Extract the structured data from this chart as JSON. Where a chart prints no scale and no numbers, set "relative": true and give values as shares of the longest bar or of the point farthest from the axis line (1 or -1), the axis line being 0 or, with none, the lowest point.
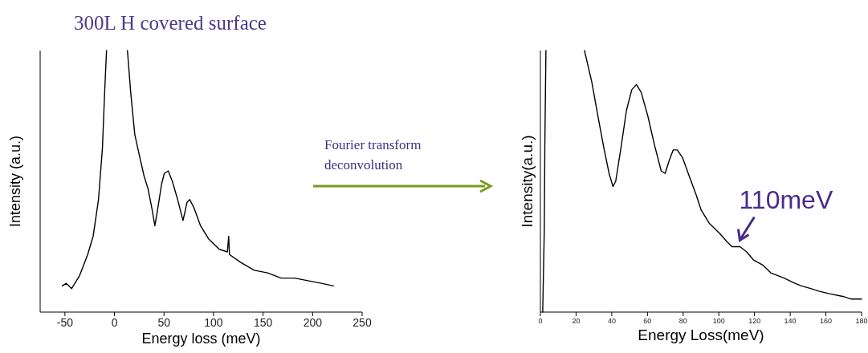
{
  "chart_data": [
    {
      "type": "line",
      "title": "300L H covered surface",
      "xlabel": "Energy loss (meV)",
      "ylabel": "Intensity (a.u.)",
      "relative": true,
      "xlim": [
        -75,
        250
      ],
      "xticks": [
        -50,
        0,
        50,
        100,
        150,
        200,
        250
      ],
      "annotations": [
        "Fourier transform deconvolution"
      ],
      "series": [
        {
          "color": "#000000",
          "x": [
            -52.7,
            -48.6,
            -43.2,
            -35.1,
            -27.0,
            -21.5,
            -16.1,
            -12.1,
            -9.9,
            -8.0,
            2.5,
            13.1,
            16.4,
            20.5,
            24.5,
            29.9,
            34.0,
            38.1,
            40.8,
            43.5,
            47.6,
            50.3,
            54.3,
            58.4,
            63.8,
            69.2,
            73.3,
            76.0,
            80.1,
            86.9,
            95.0,
            105.8,
            114.0,
            115.3,
            116.1,
            127.5,
            141.1,
            154.6,
            168.2,
            181.7,
            195.3,
            208.8,
            221.0
          ],
          "values": [
            0.1,
            0.11,
            0.09,
            0.14,
            0.22,
            0.29,
            0.43,
            0.63,
            0.84,
            1.0,
            null,
            1.0,
            0.84,
            0.68,
            0.61,
            0.52,
            0.47,
            0.39,
            0.33,
            0.39,
            0.49,
            0.53,
            0.54,
            0.5,
            0.43,
            0.35,
            0.42,
            0.43,
            0.4,
            0.33,
            0.28,
            0.24,
            0.23,
            0.29,
            0.22,
            0.19,
            0.16,
            0.15,
            0.13,
            0.13,
            0.12,
            0.11,
            0.1
          ]
        }
      ]
    },
    {
      "type": "line",
      "xlabel": "Energy Loss(meV)",
      "ylabel": "Intensity(a.u.)",
      "relative": true,
      "xlim": [
        0,
        180
      ],
      "xticks": [
        0,
        20,
        40,
        60,
        80,
        100,
        120,
        140,
        160,
        180
      ],
      "annotations": [
        {
          "text": "110meV",
          "x": 110,
          "y": 0.25
        }
      ],
      "series": [
        {
          "color": "#000000",
          "x": [
            1.3,
            2.2,
            2.5,
            3.1,
            14.0,
            24.7,
            28.8,
            32.5,
            35.5,
            38.5,
            40.7,
            42.2,
            45.2,
            48.2,
            51.2,
            53.8,
            56.5,
            60.2,
            63.9,
            67.7,
            69.9,
            72.2,
            74.4,
            76.7,
            79.7,
            83.4,
            87.2,
            90.1,
            94.6,
            100.6,
            104.4,
            107.4,
            111.9,
            115.6,
            119.3,
            124.6,
            129.1,
            136.6,
            142.6,
            146.3,
            151.5,
            156.0,
            162.0,
            169.5,
            174.0,
            180.0
          ],
          "values": [
            0,
            0.32,
            0.64,
            1.0,
            null,
            1.0,
            0.88,
            0.74,
            0.63,
            0.53,
            0.48,
            0.5,
            0.63,
            0.77,
            0.85,
            0.87,
            0.84,
            0.75,
            0.64,
            0.54,
            0.53,
            0.58,
            0.62,
            0.62,
            0.59,
            0.52,
            0.45,
            0.39,
            0.34,
            0.3,
            0.27,
            0.25,
            0.25,
            0.23,
            0.2,
            0.18,
            0.15,
            0.13,
            0.11,
            0.1,
            0.09,
            0.08,
            0.07,
            0.06,
            0.05,
            0.05
          ]
        }
      ]
    }
  ]
}
